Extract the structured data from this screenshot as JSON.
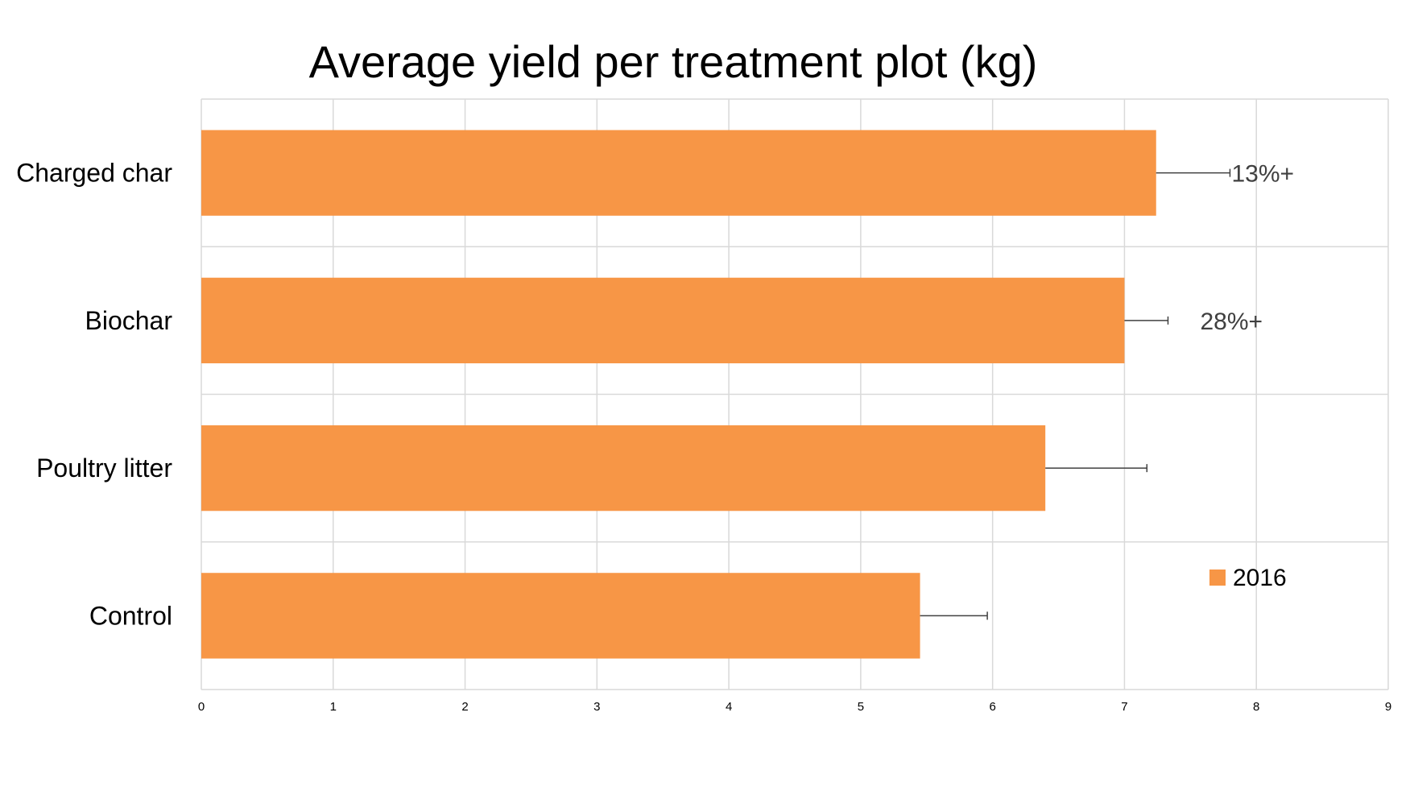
{
  "chart_data": {
    "type": "bar",
    "orientation": "horizontal",
    "title": "Average yield per treatment plot (kg)",
    "xlabel": "",
    "ylabel": "",
    "categories": [
      "Charged char",
      "Biochar",
      "Poultry litter",
      "Control"
    ],
    "series": [
      {
        "name": "2016",
        "color": "#f79646",
        "values": [
          7.24,
          7.0,
          6.4,
          5.45
        ],
        "error_plus": [
          0.56,
          0.33,
          0.77,
          0.51
        ]
      }
    ],
    "annotations": [
      "13%+",
      "28%+",
      "",
      ""
    ],
    "xlim": [
      0,
      9
    ],
    "xticks": [
      "0",
      "1",
      "2",
      "3",
      "4",
      "5",
      "6",
      "7",
      "8",
      "9"
    ],
    "grid": true,
    "legend": {
      "position": "bottom-right",
      "entries": [
        "2016"
      ]
    }
  }
}
